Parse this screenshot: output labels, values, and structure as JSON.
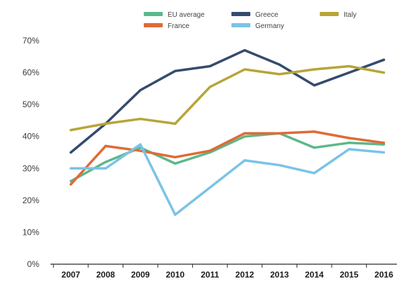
{
  "chart_data": {
    "type": "line",
    "categories": [
      "2007",
      "2008",
      "2009",
      "2010",
      "2011",
      "2012",
      "2013",
      "2014",
      "2015",
      "2016"
    ],
    "series": [
      {
        "name": "EU average",
        "color": "#5cb88a",
        "values": [
          26,
          32,
          36.5,
          31.5,
          35,
          40,
          41,
          36.5,
          38,
          37.5
        ]
      },
      {
        "name": "France",
        "color": "#e06a36",
        "values": [
          25,
          37,
          35.5,
          33.5,
          35.5,
          41,
          41,
          41.5,
          39.5,
          38
        ]
      },
      {
        "name": "Greece",
        "color": "#354b6e",
        "values": [
          35,
          44,
          54.5,
          60.5,
          62,
          67,
          62.5,
          56,
          60,
          64
        ]
      },
      {
        "name": "Germany",
        "color": "#7ac3e8",
        "values": [
          30,
          30,
          37.5,
          15.5,
          24,
          32.5,
          31,
          28.5,
          36,
          35
        ]
      },
      {
        "name": "Italy",
        "color": "#b7a537",
        "values": [
          42,
          44,
          45.5,
          44,
          55.5,
          61,
          59.5,
          61,
          62,
          60
        ]
      }
    ],
    "yticks": [
      "0%",
      "10%",
      "20%",
      "30%",
      "40%",
      "50%",
      "60%",
      "70%"
    ],
    "ylim": [
      0,
      70
    ],
    "grid": false,
    "legend_position": "top"
  }
}
